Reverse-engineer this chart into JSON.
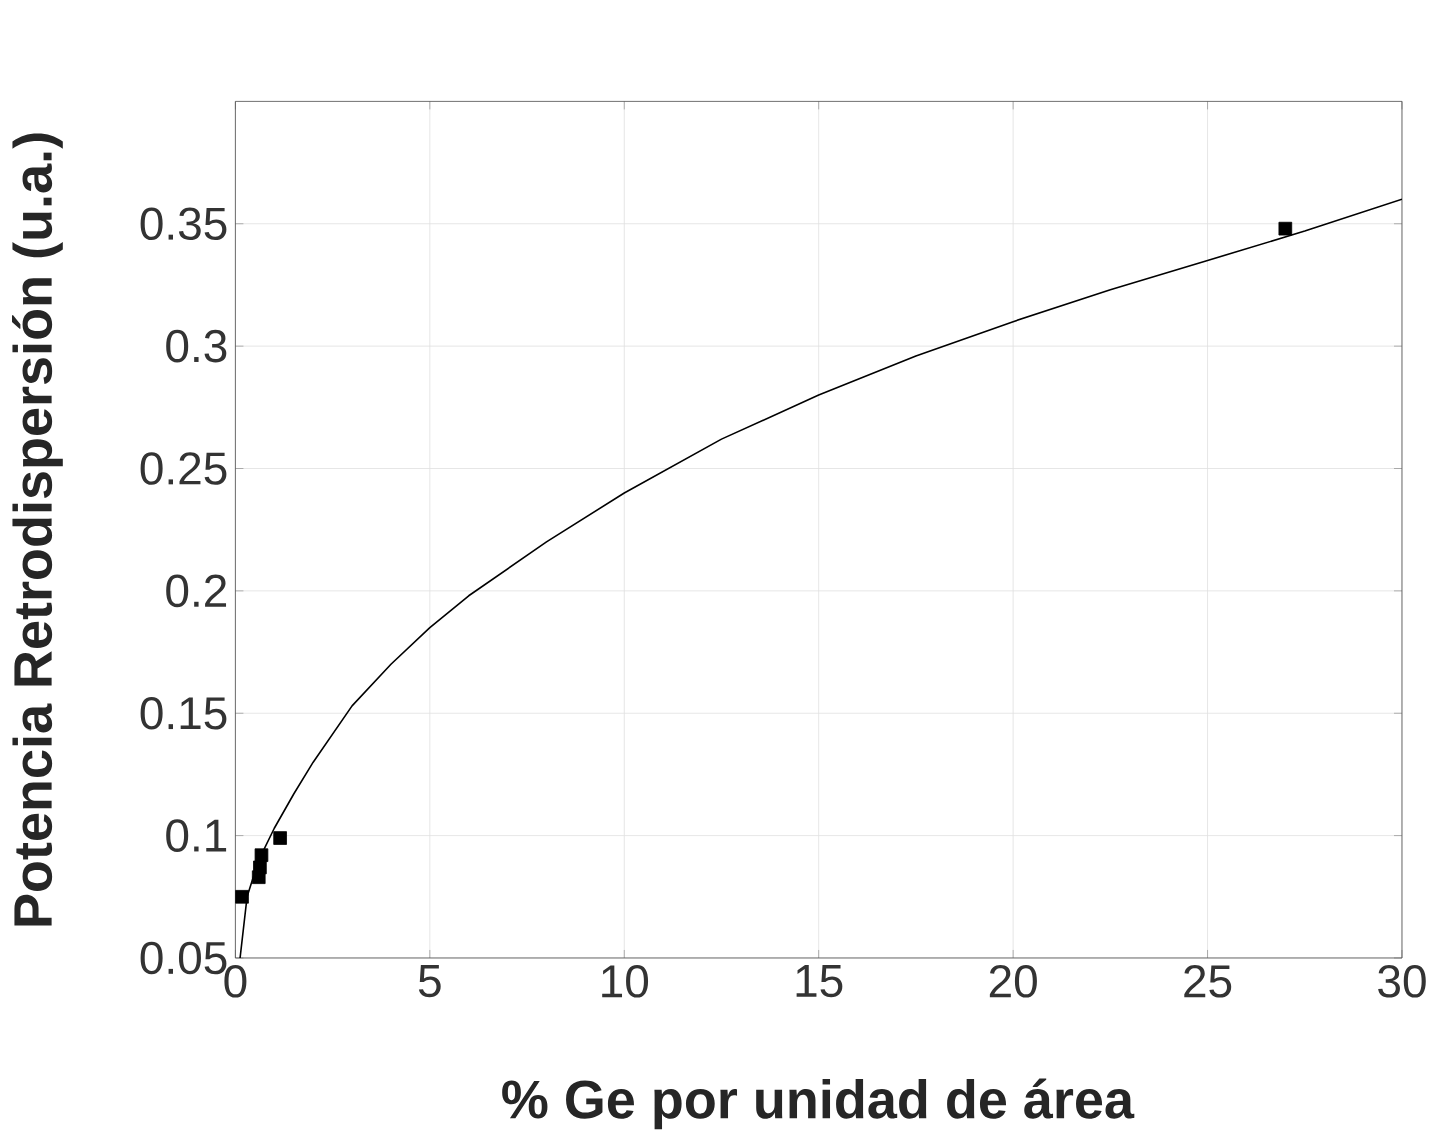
{
  "chart_data": {
    "type": "scatter",
    "xlabel": "% Ge por unidad de área",
    "ylabel": "Potencia Retrodispersión (u.a.)",
    "xlim": [
      0,
      30
    ],
    "ylim": [
      0.05,
      0.4
    ],
    "xticks": [
      0,
      5,
      10,
      15,
      20,
      25,
      30
    ],
    "yticks": [
      0.05,
      0.1,
      0.15,
      0.2,
      0.25,
      0.3,
      0.35
    ],
    "grid": true,
    "marker": "square",
    "series": [
      {
        "type": "scatter",
        "color": "#000000",
        "x": [
          0.17,
          0.6,
          0.63,
          0.67,
          1.15,
          27.0
        ],
        "values": [
          0.075,
          0.083,
          0.087,
          0.092,
          0.099,
          0.348
        ]
      },
      {
        "type": "line",
        "color": "#000000",
        "marker": "none",
        "x": [
          0.12,
          0.3,
          0.6,
          1,
          1.5,
          2,
          3,
          4,
          5,
          6,
          8,
          10,
          12.5,
          15,
          17.5,
          20,
          22.5,
          25,
          27.5,
          30
        ],
        "values": [
          0.05,
          0.075,
          0.09,
          0.103,
          0.117,
          0.13,
          0.153,
          0.17,
          0.185,
          0.198,
          0.22,
          0.24,
          0.262,
          0.28,
          0.296,
          0.31,
          0.323,
          0.335,
          0.347,
          0.36
        ]
      }
    ]
  }
}
